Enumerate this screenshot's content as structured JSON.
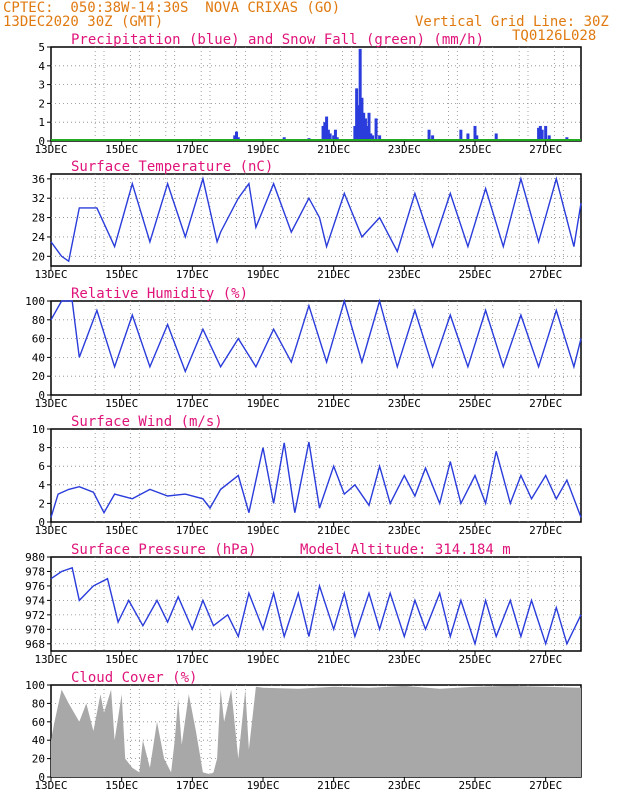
{
  "header": {
    "line1_left": "CPTEC:  050:38W-14:30S  NOVA CRIXAS (GO)",
    "line2_left": "13DEC2020 30Z (GMT)",
    "line2_right": "Vertical Grid Line: 30Z",
    "line3_right": "TQ0126L028"
  },
  "x_axis": {
    "labels": [
      "13DEC",
      "15DEC",
      "17DEC",
      "19DEC",
      "21DEC",
      "23DEC",
      "25DEC",
      "27DEC"
    ],
    "range_days": [
      0,
      15
    ]
  },
  "colors": {
    "blue": "#2a3cdb",
    "green": "#22aa22",
    "grey": "#a8a8a8",
    "pink": "#e0147a",
    "orange": "#e07a10"
  },
  "chart_data": [
    {
      "type": "bar",
      "title": "Precipitation (blue) and Snow Fall (green) (mm/h)",
      "ylim": [
        0,
        5
      ],
      "yticks": [
        "0",
        "1",
        "2",
        "3",
        "4",
        "5"
      ],
      "series": [
        {
          "name": "Precipitation",
          "values_x_y": [
            [
              5.2,
              0.3
            ],
            [
              5.25,
              0.5
            ],
            [
              5.3,
              0.2
            ],
            [
              6.6,
              0.2
            ],
            [
              7.3,
              0.15
            ],
            [
              7.7,
              0.8
            ],
            [
              7.75,
              1.0
            ],
            [
              7.8,
              1.3
            ],
            [
              7.85,
              0.6
            ],
            [
              7.9,
              0.4
            ],
            [
              8.0,
              0.3
            ],
            [
              8.05,
              0.6
            ],
            [
              8.1,
              0.2
            ],
            [
              8.6,
              0.8
            ],
            [
              8.65,
              2.8
            ],
            [
              8.7,
              1.9
            ],
            [
              8.75,
              4.9
            ],
            [
              8.8,
              2.3
            ],
            [
              8.85,
              1.5
            ],
            [
              8.9,
              1.2
            ],
            [
              8.95,
              0.8
            ],
            [
              9.0,
              1.5
            ],
            [
              9.05,
              0.4
            ],
            [
              9.1,
              0.3
            ],
            [
              9.2,
              1.2
            ],
            [
              9.3,
              0.3
            ],
            [
              10.7,
              0.6
            ],
            [
              10.8,
              0.3
            ],
            [
              11.6,
              0.6
            ],
            [
              11.8,
              0.4
            ],
            [
              12.0,
              0.8
            ],
            [
              12.05,
              0.3
            ],
            [
              12.6,
              0.4
            ],
            [
              13.8,
              0.7
            ],
            [
              13.85,
              0.8
            ],
            [
              13.9,
              0.6
            ],
            [
              14.0,
              0.8
            ],
            [
              14.1,
              0.3
            ],
            [
              14.6,
              0.2
            ]
          ]
        },
        {
          "name": "Snow Fall",
          "values_x_y": [
            [
              0,
              0
            ],
            [
              15,
              0
            ]
          ]
        }
      ]
    },
    {
      "type": "line",
      "title": "Surface Temperature (nC)",
      "ylim": [
        18,
        37
      ],
      "yticks": [
        "20",
        "24",
        "28",
        "32",
        "36"
      ],
      "x": [
        0,
        0.3,
        0.5,
        0.8,
        1.3,
        1.8,
        2.3,
        2.8,
        3.3,
        3.8,
        4.3,
        4.7,
        4.8,
        5.3,
        5.6,
        5.8,
        6.3,
        6.8,
        7.3,
        7.6,
        7.8,
        8.3,
        8.8,
        9.3,
        9.8,
        10.3,
        10.8,
        11.3,
        11.8,
        12.3,
        12.8,
        13.3,
        13.8,
        14.3,
        14.8,
        15
      ],
      "y": [
        23,
        20,
        19,
        30,
        30,
        22,
        35,
        23,
        35,
        24,
        36,
        23,
        25,
        32,
        35,
        26,
        35,
        25,
        32,
        28,
        22,
        33,
        24,
        28,
        21,
        33,
        22,
        33,
        22,
        34,
        22,
        36,
        23,
        36,
        22,
        31
      ]
    },
    {
      "type": "line",
      "title": "Relative Humidity (%)",
      "ylim": [
        0,
        100
      ],
      "yticks": [
        "0",
        "20",
        "40",
        "60",
        "80",
        "100"
      ],
      "x": [
        0,
        0.3,
        0.6,
        0.8,
        1.3,
        1.8,
        2.3,
        2.8,
        3.3,
        3.8,
        4.3,
        4.8,
        5.3,
        5.8,
        6.3,
        6.8,
        7.3,
        7.8,
        8.3,
        8.8,
        9.3,
        9.8,
        10.3,
        10.8,
        11.3,
        11.8,
        12.3,
        12.8,
        13.3,
        13.8,
        14.3,
        14.8,
        15
      ],
      "y": [
        80,
        100,
        100,
        40,
        90,
        30,
        85,
        30,
        75,
        25,
        70,
        30,
        60,
        30,
        70,
        35,
        95,
        35,
        100,
        35,
        100,
        30,
        90,
        30,
        85,
        30,
        90,
        30,
        85,
        30,
        90,
        30,
        60
      ]
    },
    {
      "type": "line",
      "title": "Surface Wind (m/s)",
      "ylim": [
        0,
        10
      ],
      "yticks": [
        "0",
        "2",
        "4",
        "6",
        "8",
        "10"
      ],
      "x": [
        0,
        0.2,
        0.5,
        0.8,
        1.2,
        1.5,
        1.8,
        2.3,
        2.8,
        3.3,
        3.8,
        4.3,
        4.5,
        4.8,
        5.3,
        5.6,
        6.0,
        6.3,
        6.6,
        6.9,
        7.3,
        7.6,
        8.0,
        8.3,
        8.6,
        9.0,
        9.3,
        9.6,
        10.0,
        10.3,
        10.6,
        11.0,
        11.3,
        11.6,
        12.0,
        12.3,
        12.6,
        13.0,
        13.3,
        13.6,
        14.0,
        14.3,
        14.6,
        15
      ],
      "y": [
        0.5,
        3,
        3.5,
        3.8,
        3.2,
        1,
        3,
        2.5,
        3.5,
        2.8,
        3,
        2.5,
        1.5,
        3.5,
        5,
        1,
        8,
        2,
        8.5,
        1,
        8.6,
        1.5,
        6,
        3,
        4,
        1.8,
        6,
        2,
        5,
        2.8,
        5.8,
        2,
        6.5,
        2,
        5,
        2,
        7.6,
        2,
        5,
        2.5,
        5,
        2.5,
        4.5,
        0.5
      ]
    },
    {
      "type": "line",
      "title": "Surface Pressure (hPa)",
      "annotation": "Model Altitude: 314.184 m",
      "ylim": [
        967,
        980
      ],
      "yticks": [
        "968",
        "970",
        "972",
        "974",
        "976",
        "978",
        "980"
      ],
      "x": [
        0,
        0.3,
        0.6,
        0.8,
        1.2,
        1.6,
        1.9,
        2.2,
        2.6,
        3.0,
        3.3,
        3.6,
        4.0,
        4.3,
        4.6,
        5.0,
        5.3,
        5.6,
        6.0,
        6.3,
        6.6,
        7.0,
        7.3,
        7.6,
        8.0,
        8.3,
        8.6,
        9.0,
        9.3,
        9.6,
        10.0,
        10.3,
        10.6,
        11.0,
        11.3,
        11.6,
        12.0,
        12.3,
        12.6,
        13.0,
        13.3,
        13.6,
        14.0,
        14.3,
        14.6,
        15
      ],
      "y": [
        977,
        978,
        978.5,
        974,
        976,
        977,
        971,
        974,
        970.5,
        974,
        971,
        974.5,
        970,
        974,
        970.5,
        972,
        969,
        975,
        970,
        975,
        969,
        975,
        969,
        976,
        970,
        975,
        969,
        975,
        970,
        975,
        969,
        974,
        970,
        975,
        969,
        974,
        968,
        974,
        969,
        974,
        969,
        974,
        968,
        973,
        968,
        972
      ]
    },
    {
      "type": "area",
      "title": "Cloud Cover (%)",
      "ylim": [
        0,
        100
      ],
      "yticks": [
        "0",
        "20",
        "40",
        "60",
        "80",
        "100"
      ],
      "x": [
        0,
        0.1,
        0.3,
        0.5,
        0.8,
        1.0,
        1.2,
        1.4,
        1.5,
        1.7,
        1.8,
        2.0,
        2.1,
        2.3,
        2.5,
        2.6,
        2.8,
        3.0,
        3.2,
        3.4,
        3.5,
        3.6,
        3.7,
        3.9,
        4.1,
        4.3,
        4.5,
        4.6,
        4.7,
        4.8,
        4.9,
        5.1,
        5.3,
        5.5,
        5.6,
        5.8,
        6.0,
        7.0,
        8.0,
        9.0,
        10.0,
        11.0,
        12.0,
        13.0,
        14.0,
        15
      ],
      "y": [
        40,
        60,
        95,
        80,
        60,
        80,
        50,
        90,
        70,
        95,
        40,
        90,
        20,
        10,
        5,
        40,
        10,
        60,
        20,
        5,
        40,
        85,
        35,
        90,
        50,
        5,
        3,
        5,
        20,
        95,
        60,
        95,
        20,
        95,
        30,
        98,
        97,
        96,
        98,
        97,
        99,
        96,
        98,
        99,
        98,
        97
      ]
    }
  ]
}
